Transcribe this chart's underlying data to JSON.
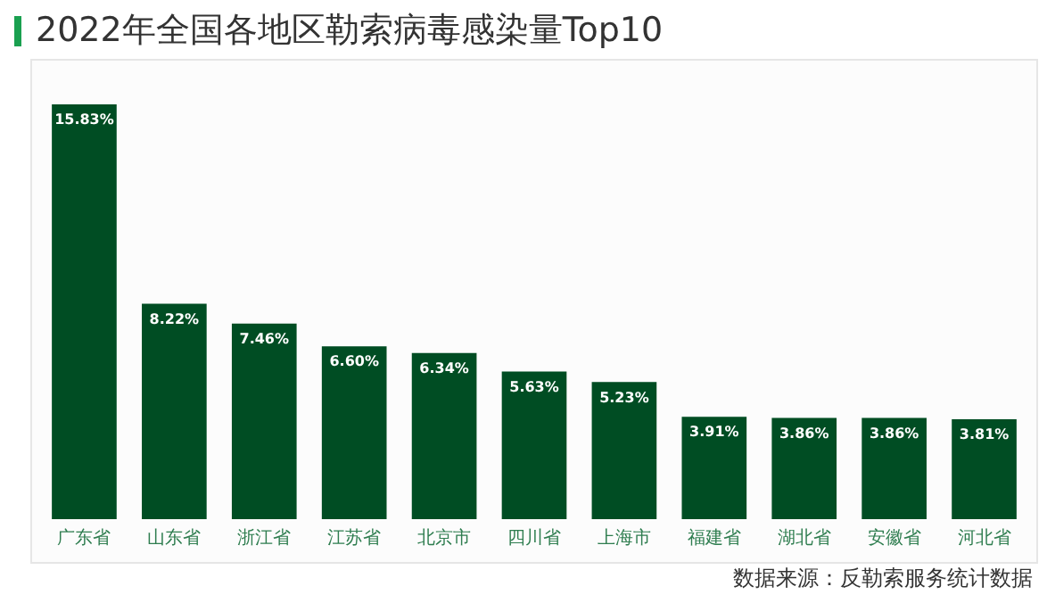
{
  "chart_data": {
    "type": "bar",
    "title": "2022年全国各地区勒索病毒感染量Top10",
    "categories": [
      "广东省",
      "山东省",
      "浙江省",
      "江苏省",
      "北京市",
      "四川省",
      "上海市",
      "福建省",
      "湖北省",
      "安徽省",
      "河北省"
    ],
    "values": [
      15.83,
      8.22,
      7.46,
      6.6,
      6.34,
      5.63,
      5.23,
      3.91,
      3.86,
      3.86,
      3.81
    ],
    "value_labels": [
      "15.83%",
      "8.22%",
      "7.46%",
      "6.60%",
      "6.34%",
      "5.63%",
      "5.23%",
      "3.91%",
      "3.86%",
      "3.86%",
      "3.81%"
    ],
    "color": "#004d23",
    "grid": false,
    "legend": false,
    "annotations": [
      "数据来源：反勒索服务统计数据"
    ]
  }
}
